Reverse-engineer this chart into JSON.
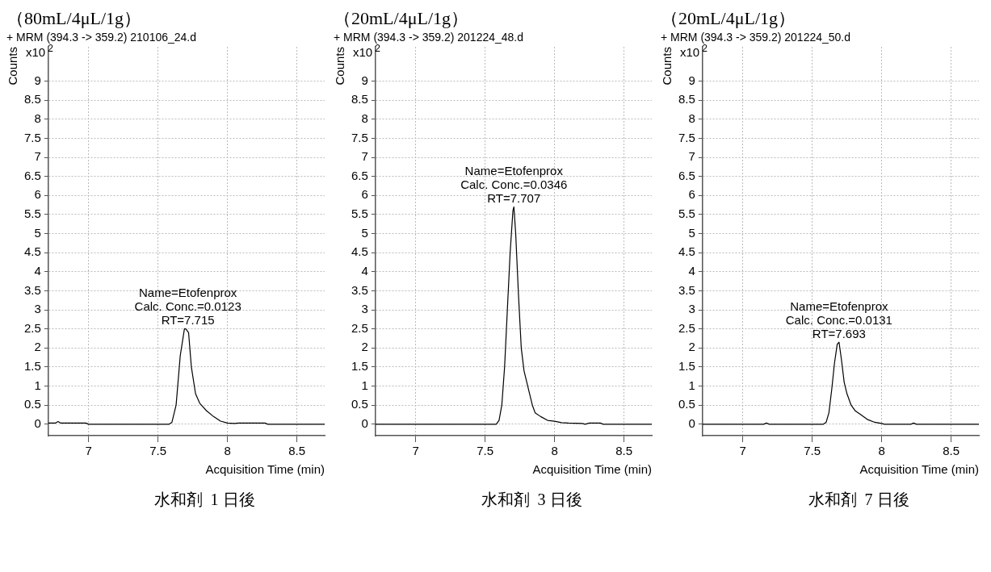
{
  "chart_data": [
    {
      "type": "line",
      "title": "（80mL/4μL/1g）",
      "subtitle": "+ MRM (394.3 -> 359.2) 210106_24.d",
      "xlabel": "Acquisition Time (min)",
      "ylabel": "Counts",
      "color": "#000000",
      "marker": "none",
      "grid": true,
      "legend": false,
      "xlim": [
        6.71,
        8.7
      ],
      "xticks": [
        7,
        7.5,
        8,
        8.5
      ],
      "ylim": [
        -0.3,
        9.9
      ],
      "yticks": [
        0,
        0.5,
        1,
        1.5,
        2,
        2.5,
        3,
        3.5,
        4,
        4.5,
        5,
        5.5,
        6,
        6.5,
        7,
        7.5,
        8,
        8.5,
        9
      ],
      "x": [
        6.71,
        6.76,
        6.78,
        6.8,
        6.98,
        7.0,
        7.58,
        7.6,
        7.63,
        7.66,
        7.69,
        7.7,
        7.72,
        7.74,
        7.77,
        7.8,
        7.85,
        7.9,
        7.95,
        8.0,
        8.05,
        8.08,
        8.27,
        8.29,
        8.7
      ],
      "values": [
        0.03,
        0.03,
        0.07,
        0.03,
        0.03,
        0,
        0,
        0.05,
        0.5,
        1.8,
        2.5,
        2.5,
        2.4,
        1.5,
        0.8,
        0.55,
        0.35,
        0.2,
        0.08,
        0.03,
        0.02,
        0.03,
        0.03,
        0,
        0
      ],
      "annotations": [
        "x10$^{2}$",
        {
          "text": "Name=Etofenprox\nCalc. Conc.=0.0123\nRT=7.715",
          "x": 7.715,
          "y": 2.5
        },
        "水和剤  1 日後"
      ]
    },
    {
      "type": "line",
      "title": "（20mL/4μL/1g）",
      "subtitle": "+ MRM (394.3 -> 359.2) 201224_48.d",
      "xlabel": "Acquisition Time (min)",
      "ylabel": "Counts",
      "color": "#000000",
      "marker": "none",
      "grid": true,
      "legend": false,
      "xlim": [
        6.71,
        8.7
      ],
      "xticks": [
        7,
        7.5,
        8,
        8.5
      ],
      "ylim": [
        -0.3,
        9.9
      ],
      "yticks": [
        0,
        0.5,
        1,
        1.5,
        2,
        2.5,
        3,
        3.5,
        4,
        4.5,
        5,
        5.5,
        6,
        6.5,
        7,
        7.5,
        8,
        8.5,
        9
      ],
      "x": [
        6.71,
        7.58,
        7.6,
        7.62,
        7.64,
        7.66,
        7.68,
        7.7,
        7.707,
        7.72,
        7.74,
        7.76,
        7.78,
        7.8,
        7.82,
        7.84,
        7.86,
        7.9,
        7.95,
        8.0,
        8.05,
        8.1,
        8.2,
        8.22,
        8.25,
        8.33,
        8.35,
        8.7
      ],
      "values": [
        0,
        0,
        0.1,
        0.5,
        1.5,
        3.0,
        4.5,
        5.6,
        5.7,
        5.0,
        3.4,
        2.0,
        1.4,
        1.1,
        0.8,
        0.5,
        0.3,
        0.2,
        0.1,
        0.08,
        0.04,
        0.03,
        0.02,
        0,
        0.03,
        0.03,
        0,
        0
      ],
      "annotations": [
        "x10$^{2}$",
        {
          "text": "Name=Etofenprox\nCalc. Conc.=0.0346\nRT=7.707",
          "x": 7.707,
          "y": 5.7
        },
        "水和剤  3 日後"
      ]
    },
    {
      "type": "line",
      "title": "（20mL/4μL/1g）",
      "subtitle": "+ MRM (394.3 -> 359.2) 201224_50.d",
      "xlabel": "Acquisition Time (min)",
      "ylabel": "Counts",
      "color": "#000000",
      "marker": "none",
      "grid": true,
      "legend": false,
      "xlim": [
        6.71,
        8.7
      ],
      "xticks": [
        7,
        7.5,
        8,
        8.5
      ],
      "ylim": [
        -0.3,
        9.9
      ],
      "yticks": [
        0,
        0.5,
        1,
        1.5,
        2,
        2.5,
        3,
        3.5,
        4,
        4.5,
        5,
        5.5,
        6,
        6.5,
        7,
        7.5,
        8,
        8.5,
        9
      ],
      "x": [
        6.71,
        7.15,
        7.17,
        7.19,
        7.58,
        7.6,
        7.62,
        7.64,
        7.66,
        7.68,
        7.693,
        7.71,
        7.73,
        7.75,
        7.78,
        7.81,
        7.85,
        7.9,
        7.95,
        8.0,
        8.02,
        8.21,
        8.23,
        8.25,
        8.7
      ],
      "values": [
        0,
        0,
        0.03,
        0,
        0,
        0.05,
        0.3,
        0.9,
        1.6,
        2.1,
        2.15,
        1.7,
        1.1,
        0.8,
        0.5,
        0.35,
        0.25,
        0.12,
        0.05,
        0.02,
        0,
        0,
        0.03,
        0,
        0
      ],
      "annotations": [
        "x10$^{2}$",
        {
          "text": "Name=Etofenprox\nCalc. Conc.=0.0131\nRT=7.693",
          "x": 7.693,
          "y": 2.15
        },
        "水和剤  7 日後"
      ]
    }
  ]
}
